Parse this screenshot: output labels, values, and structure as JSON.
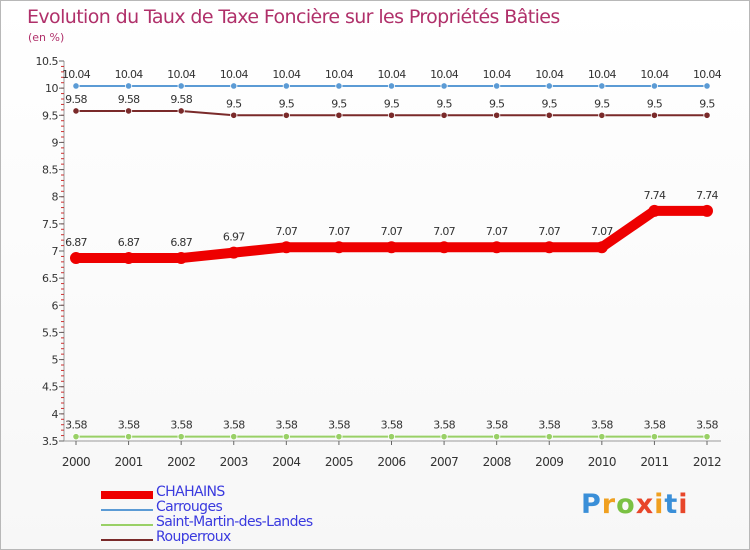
{
  "header": {
    "title": "Evolution du Taux de Taxe Foncière sur les Propriétés Bâties",
    "unit": "(en %)"
  },
  "chart_data": {
    "type": "line",
    "title": "Evolution du Taux de Taxe Foncière sur les Propriétés Bâties",
    "ylabel": "(en %)",
    "xlabel": "",
    "categories": [
      "2000",
      "2001",
      "2002",
      "2003",
      "2004",
      "2005",
      "2006",
      "2007",
      "2008",
      "2009",
      "2010",
      "2011",
      "2012"
    ],
    "ylim": [
      3.5,
      10.5
    ],
    "yticks": [
      "3.5",
      "4",
      "4.5",
      "5",
      "5.5",
      "6",
      "6.5",
      "7",
      "7.5",
      "8",
      "8.5",
      "9",
      "9.5",
      "10",
      "10.5"
    ],
    "series": [
      {
        "name": "Carrouges",
        "color": "#5b9bd5",
        "emphasis": false,
        "values": [
          10.04,
          10.04,
          10.04,
          10.04,
          10.04,
          10.04,
          10.04,
          10.04,
          10.04,
          10.04,
          10.04,
          10.04,
          10.04
        ],
        "labels": [
          "10.04",
          "10.04",
          "10.04",
          "10.04",
          "10.04",
          "10.04",
          "10.04",
          "10.04",
          "10.04",
          "10.04",
          "10.04",
          "10.04",
          "10.04"
        ]
      },
      {
        "name": "Rouperroux",
        "color": "#7a2a2a",
        "emphasis": false,
        "values": [
          9.58,
          9.58,
          9.58,
          9.5,
          9.5,
          9.5,
          9.5,
          9.5,
          9.5,
          9.5,
          9.5,
          9.5,
          9.5
        ],
        "labels": [
          "9.58",
          "9.58",
          "9.58",
          "9.5",
          "9.5",
          "9.5",
          "9.5",
          "9.5",
          "9.5",
          "9.5",
          "9.5",
          "9.5",
          "9.5"
        ]
      },
      {
        "name": "CHAHAINS",
        "color": "#ee0000",
        "emphasis": true,
        "values": [
          6.87,
          6.87,
          6.87,
          6.97,
          7.07,
          7.07,
          7.07,
          7.07,
          7.07,
          7.07,
          7.07,
          7.74,
          7.74
        ],
        "labels": [
          "6.87",
          "6.87",
          "6.87",
          "6.97",
          "7.07",
          "7.07",
          "7.07",
          "7.07",
          "7.07",
          "7.07",
          "7.07",
          "7.74",
          "7.74"
        ]
      },
      {
        "name": "Saint-Martin-des-Landes",
        "color": "#99d066",
        "emphasis": false,
        "values": [
          3.58,
          3.58,
          3.58,
          3.58,
          3.58,
          3.58,
          3.58,
          3.58,
          3.58,
          3.58,
          3.58,
          3.58,
          3.58
        ],
        "labels": [
          "3.58",
          "3.58",
          "3.58",
          "3.58",
          "3.58",
          "3.58",
          "3.58",
          "3.58",
          "3.58",
          "3.58",
          "3.58",
          "3.58",
          "3.58"
        ]
      }
    ],
    "legend": {
      "position": "bottom-left",
      "order": [
        "CHAHAINS",
        "Carrouges",
        "Saint-Martin-des-Landes",
        "Rouperroux"
      ]
    },
    "grid": false
  },
  "legend_items": [
    {
      "label": "CHAHAINS",
      "color": "#ee0000",
      "emphasis": true
    },
    {
      "label": "Carrouges",
      "color": "#5b9bd5",
      "emphasis": false
    },
    {
      "label": "Saint-Martin-des-Landes",
      "color": "#99d066",
      "emphasis": false
    },
    {
      "label": "Rouperroux",
      "color": "#7a2a2a",
      "emphasis": false
    }
  ],
  "logo": {
    "letters": [
      "P",
      "r",
      "o",
      "x",
      "i",
      "t",
      "i"
    ],
    "colors": [
      "#3a8fd8",
      "#f0a020",
      "#7ac143",
      "#e8462a",
      "#f0a020",
      "#3a8fd8",
      "#e8462a"
    ]
  }
}
